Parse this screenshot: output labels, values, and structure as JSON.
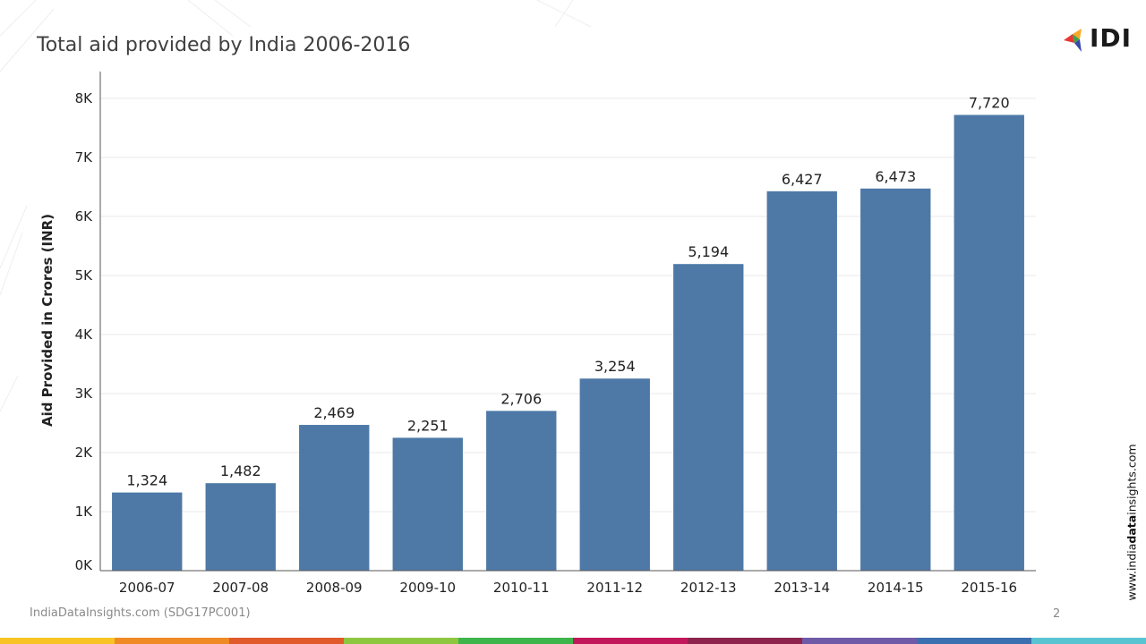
{
  "slide": {
    "title": "Total aid provided by India 2006-2016",
    "logo_text": "IDI",
    "website_prefix": "www.india",
    "website_bold": "data",
    "website_suffix": "insights.com",
    "footer_source": "IndiaDataInsights.com (SDG17PC001)",
    "page_number": "2"
  },
  "colors": {
    "bar": "#4e79a7",
    "grid": "#e8e8e8",
    "axis": "#555555",
    "bottom_bar": [
      "#f7c325",
      "#f08a24",
      "#e05a2b",
      "#8dc63f",
      "#3db54a",
      "#c2185b",
      "#8e244d",
      "#6f5aa8",
      "#3a6fb0",
      "#58c4d1"
    ]
  },
  "chart_data": {
    "type": "bar",
    "title": "",
    "xlabel": "",
    "ylabel": "Aid Provided in Crores (INR)",
    "categories": [
      "2006-07",
      "2007-08",
      "2008-09",
      "2009-10",
      "2010-11",
      "2011-12",
      "2012-13",
      "2013-14",
      "2014-15",
      "2015-16"
    ],
    "values": [
      1324,
      1482,
      2469,
      2251,
      2706,
      3254,
      5194,
      6427,
      6473,
      7720
    ],
    "data_labels": [
      "1,324",
      "1,482",
      "2,469",
      "2,251",
      "2,706",
      "3,254",
      "5,194",
      "6,427",
      "6,473",
      "7,720"
    ],
    "yticks": [
      0,
      1000,
      2000,
      3000,
      4000,
      5000,
      6000,
      7000,
      8000
    ],
    "ytick_labels": [
      "0K",
      "1K",
      "2K",
      "3K",
      "4K",
      "5K",
      "6K",
      "7K",
      "8K"
    ],
    "ylim": [
      0,
      8000
    ],
    "grid": true,
    "legend": "none"
  }
}
